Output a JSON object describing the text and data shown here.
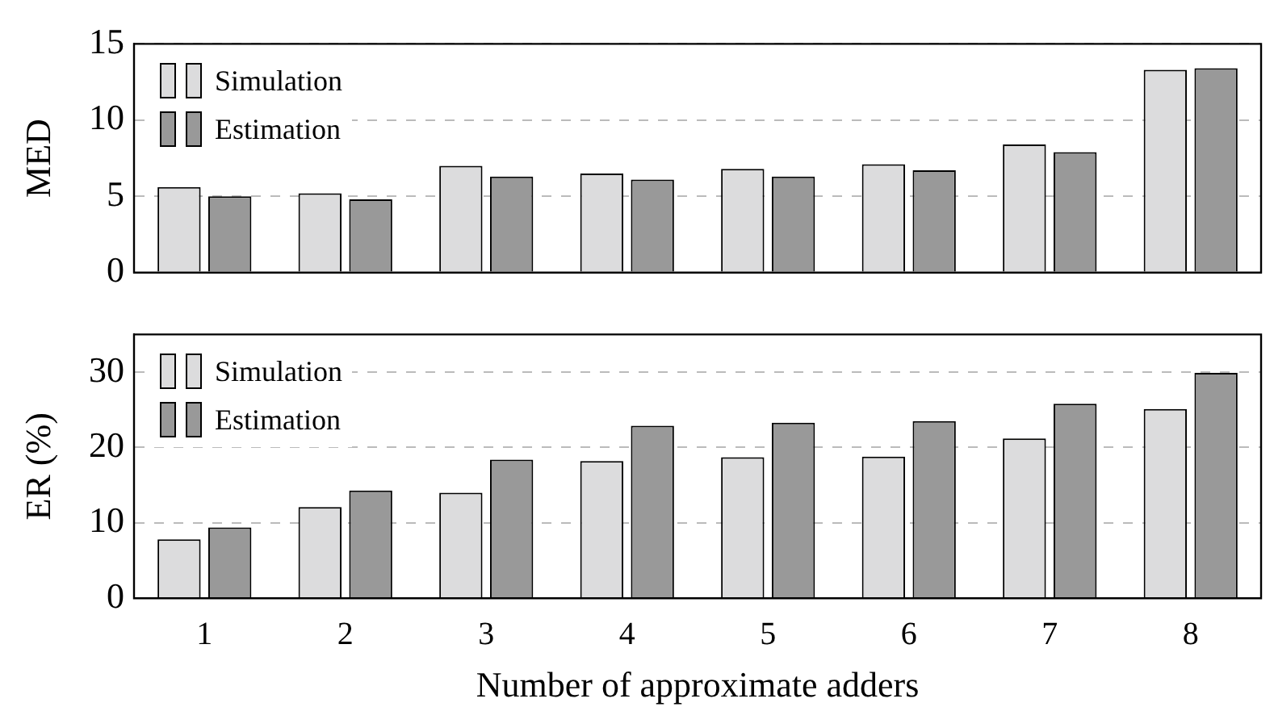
{
  "chart_data": [
    {
      "type": "bar",
      "ylabel": "MED",
      "categories": [
        "1",
        "2",
        "3",
        "4",
        "5",
        "6",
        "7",
        "8"
      ],
      "series": [
        {
          "name": "Simulation",
          "color": "#dcdcdd",
          "values": [
            5.6,
            5.2,
            7.0,
            6.5,
            6.8,
            7.1,
            8.4,
            13.3
          ]
        },
        {
          "name": "Estimation",
          "color": "#999999",
          "values": [
            5.0,
            4.8,
            6.3,
            6.1,
            6.3,
            6.7,
            7.9,
            13.4
          ]
        }
      ],
      "ylim": [
        0,
        15
      ],
      "yticks": [
        0,
        5,
        10,
        15
      ],
      "grid": "y",
      "legend": "top left",
      "tick_labels": "y"
    },
    {
      "type": "bar",
      "ylabel": "ER (%)",
      "xlabel": "Number of approximate adders",
      "categories": [
        "1",
        "2",
        "3",
        "4",
        "5",
        "6",
        "7",
        "8"
      ],
      "series": [
        {
          "name": "Simulation",
          "color": "#dcdcdd",
          "values": [
            7.8,
            12.1,
            14.0,
            18.2,
            18.7,
            18.8,
            21.2,
            25.1
          ]
        },
        {
          "name": "Estimation",
          "color": "#999999",
          "values": [
            9.4,
            14.3,
            18.4,
            22.9,
            23.3,
            23.5,
            25.8,
            29.9
          ]
        }
      ],
      "ylim": [
        0,
        35
      ],
      "yticks": [
        0,
        10,
        20,
        30
      ],
      "grid": "y",
      "legend": "top left"
    }
  ]
}
